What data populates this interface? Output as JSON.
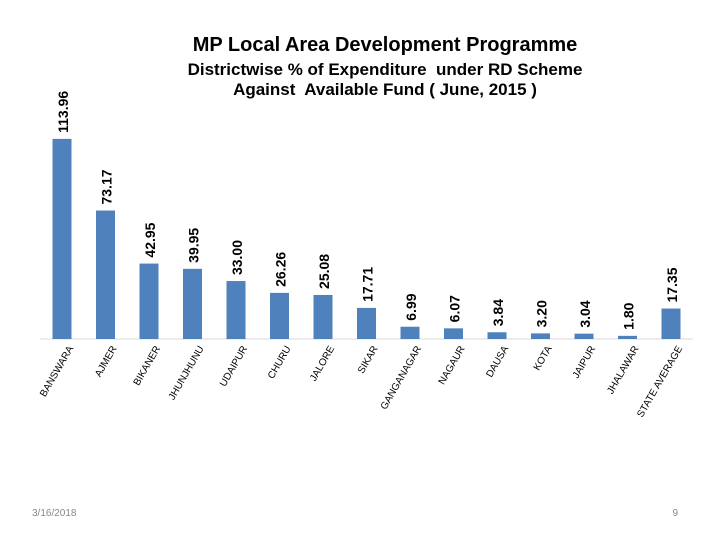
{
  "header": {
    "title": "MP Local Area Development Programme",
    "subtitle_lines": [
      "Districtwise % of Expenditure  under RD Scheme",
      "Against  Available Fund ( June, 2015 )"
    ]
  },
  "chart_data": {
    "type": "bar",
    "title": "MP Local Area Development Programme",
    "subtitle": "Districtwise % of Expenditure  under RD Scheme Against  Available Fund ( June, 2015 )",
    "categories": [
      "BANSWARA",
      "AJMER",
      "BIKANER",
      "JHUNJHUNU",
      "UDAIPUR",
      "CHURU",
      "JALORE",
      "SIKAR",
      "GANGANAGAR",
      "NAGAUR",
      "DAUSA",
      "KOTA",
      "JAIPUR",
      "JHALAWAR",
      "STATE AVERAGE"
    ],
    "values": [
      113.96,
      73.17,
      42.95,
      39.95,
      33.0,
      26.26,
      25.08,
      17.71,
      6.99,
      6.07,
      3.84,
      3.2,
      3.04,
      1.8,
      17.35
    ],
    "labels": [
      "113.96",
      "73.17",
      "42.95",
      "39.95",
      "33.00",
      "26.26",
      "25.08",
      "17.71",
      "6.99",
      "6.07",
      "3.84",
      "3.20",
      "3.04",
      "1.80",
      "17.35"
    ],
    "xlabel": "",
    "ylabel": "",
    "ylim": [
      0,
      120
    ],
    "grid": false,
    "legend": "none",
    "bar_color": "#4F81BD"
  },
  "footer": {
    "date": "3/16/2018",
    "page_number": "9"
  }
}
